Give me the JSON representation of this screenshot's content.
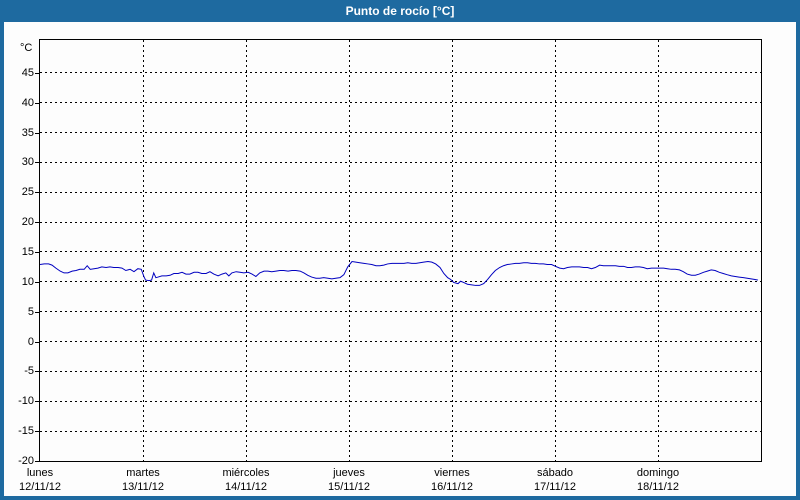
{
  "window": {
    "title": "Punto de rocío [°C]"
  },
  "colors": {
    "frame": "#1e6aa0",
    "title_text": "#ffffff",
    "plot_background": "#fdfdfd",
    "line": "#0000c0",
    "grid": "#000000"
  },
  "chart_data": {
    "type": "line",
    "title": "Punto de rocío [°C]",
    "y_unit_label": "°C",
    "ylabel": "°C",
    "xlabel": "",
    "ylim": [
      -20,
      50.5
    ],
    "yticks": [
      45,
      40,
      35,
      30,
      25,
      20,
      15,
      10,
      5,
      0,
      -5,
      -10,
      -15,
      -20
    ],
    "x_range_hours": [
      0,
      168
    ],
    "grid": "dashed",
    "legend_position": "none",
    "x_day_labels": [
      {
        "name": "lunes",
        "date": "12/11/12"
      },
      {
        "name": "martes",
        "date": "13/11/12"
      },
      {
        "name": "miércoles",
        "date": "14/11/12"
      },
      {
        "name": "jueves",
        "date": "15/11/12"
      },
      {
        "name": "viernes",
        "date": "16/11/12"
      },
      {
        "name": "sábado",
        "date": "17/11/12"
      },
      {
        "name": "domingo",
        "date": "18/11/12"
      }
    ],
    "series": [
      {
        "name": "Punto de rocío",
        "color": "#0000c0",
        "units": "°C",
        "points": [
          [
            0,
            12.9
          ],
          [
            1,
            13.0
          ],
          [
            2,
            13.0
          ],
          [
            2.8,
            12.8
          ],
          [
            3.7,
            12.3
          ],
          [
            4.7,
            11.8
          ],
          [
            5.6,
            11.5
          ],
          [
            6.5,
            11.5
          ],
          [
            7.5,
            11.8
          ],
          [
            8.4,
            11.9
          ],
          [
            9.3,
            12.1
          ],
          [
            10.3,
            12.1
          ],
          [
            11,
            12.7
          ],
          [
            11.7,
            12.1
          ],
          [
            12.6,
            12.2
          ],
          [
            13.5,
            12.3
          ],
          [
            14.4,
            12.5
          ],
          [
            15.4,
            12.4
          ],
          [
            16.3,
            12.5
          ],
          [
            17.2,
            12.4
          ],
          [
            18.2,
            12.4
          ],
          [
            19.1,
            12.3
          ],
          [
            20,
            11.9
          ],
          [
            21,
            12.1
          ],
          [
            21.9,
            11.7
          ],
          [
            22.8,
            12.2
          ],
          [
            23.6,
            12.1
          ],
          [
            24.2,
            10.9
          ],
          [
            24.6,
            10.3
          ],
          [
            25.4,
            10.2
          ],
          [
            26,
            10.3
          ],
          [
            26.5,
            11.5
          ],
          [
            27,
            10.7
          ],
          [
            27.5,
            10.8
          ],
          [
            28.4,
            11.0
          ],
          [
            29.4,
            11.0
          ],
          [
            30.3,
            11.1
          ],
          [
            31.2,
            11.4
          ],
          [
            32.2,
            11.4
          ],
          [
            33.1,
            11.6
          ],
          [
            34,
            11.3
          ],
          [
            34.9,
            11.3
          ],
          [
            35.9,
            11.6
          ],
          [
            36.8,
            11.6
          ],
          [
            37.7,
            11.4
          ],
          [
            38.7,
            11.4
          ],
          [
            39.6,
            11.7
          ],
          [
            40.5,
            11.3
          ],
          [
            41.5,
            11.0
          ],
          [
            42.4,
            11.3
          ],
          [
            43.3,
            11.5
          ],
          [
            44,
            11.0
          ],
          [
            44.7,
            11.5
          ],
          [
            45.7,
            11.7
          ],
          [
            46.6,
            11.6
          ],
          [
            47.5,
            11.5
          ],
          [
            48.5,
            11.6
          ],
          [
            49.4,
            11.3
          ],
          [
            50.3,
            10.9
          ],
          [
            51.2,
            11.5
          ],
          [
            52.2,
            11.8
          ],
          [
            53.1,
            11.8
          ],
          [
            54,
            11.7
          ],
          [
            55,
            11.8
          ],
          [
            55.9,
            11.9
          ],
          [
            56.8,
            11.9
          ],
          [
            57.8,
            11.8
          ],
          [
            58.7,
            11.9
          ],
          [
            59.6,
            11.9
          ],
          [
            60.6,
            11.8
          ],
          [
            61.5,
            11.5
          ],
          [
            62.4,
            11.1
          ],
          [
            63.3,
            10.8
          ],
          [
            64.3,
            10.6
          ],
          [
            65.2,
            10.6
          ],
          [
            66.1,
            10.7
          ],
          [
            67.1,
            10.6
          ],
          [
            68,
            10.5
          ],
          [
            68.9,
            10.6
          ],
          [
            69.9,
            10.7
          ],
          [
            70.8,
            11.2
          ],
          [
            71.7,
            12.5
          ],
          [
            72.7,
            13.4
          ],
          [
            73.6,
            13.3
          ],
          [
            74.5,
            13.2
          ],
          [
            75.5,
            13.1
          ],
          [
            76.4,
            13.0
          ],
          [
            77.3,
            12.9
          ],
          [
            78.3,
            12.7
          ],
          [
            79.2,
            12.7
          ],
          [
            80.1,
            12.8
          ],
          [
            81,
            13.0
          ],
          [
            82,
            13.1
          ],
          [
            82.9,
            13.1
          ],
          [
            83.9,
            13.1
          ],
          [
            84.8,
            13.1
          ],
          [
            85.7,
            13.2
          ],
          [
            86.6,
            13.1
          ],
          [
            87.6,
            13.1
          ],
          [
            88.5,
            13.2
          ],
          [
            89.4,
            13.3
          ],
          [
            90.4,
            13.4
          ],
          [
            91.3,
            13.3
          ],
          [
            92.2,
            13.0
          ],
          [
            93.2,
            12.4
          ],
          [
            94.1,
            11.4
          ],
          [
            95,
            10.7
          ],
          [
            95.7,
            10.4
          ],
          [
            96.4,
            9.9
          ],
          [
            97.4,
            9.7
          ],
          [
            98,
            10.1
          ],
          [
            98.7,
            9.9
          ],
          [
            99.6,
            9.6
          ],
          [
            100.6,
            9.5
          ],
          [
            101.5,
            9.4
          ],
          [
            102.4,
            9.4
          ],
          [
            103.4,
            9.7
          ],
          [
            104.3,
            10.4
          ],
          [
            105.2,
            11.2
          ],
          [
            106.1,
            11.9
          ],
          [
            107.1,
            12.4
          ],
          [
            108,
            12.7
          ],
          [
            108.9,
            12.9
          ],
          [
            109.9,
            13.0
          ],
          [
            110.8,
            13.1
          ],
          [
            111.7,
            13.1
          ],
          [
            112.7,
            13.2
          ],
          [
            113.6,
            13.2
          ],
          [
            114.5,
            13.1
          ],
          [
            115.4,
            13.1
          ],
          [
            116.4,
            13.0
          ],
          [
            117.3,
            13.0
          ],
          [
            118.2,
            12.9
          ],
          [
            119.2,
            12.9
          ],
          [
            120.1,
            12.6
          ],
          [
            121.1,
            12.3
          ],
          [
            122,
            12.2
          ],
          [
            122.9,
            12.4
          ],
          [
            123.9,
            12.5
          ],
          [
            124.8,
            12.5
          ],
          [
            125.7,
            12.5
          ],
          [
            126.7,
            12.4
          ],
          [
            127.6,
            12.4
          ],
          [
            128.5,
            12.2
          ],
          [
            129.4,
            12.4
          ],
          [
            130.4,
            12.8
          ],
          [
            131.3,
            12.7
          ],
          [
            132.2,
            12.7
          ],
          [
            133.2,
            12.7
          ],
          [
            134.1,
            12.7
          ],
          [
            135,
            12.6
          ],
          [
            136,
            12.6
          ],
          [
            136.9,
            12.4
          ],
          [
            137.8,
            12.4
          ],
          [
            138.7,
            12.5
          ],
          [
            139.7,
            12.5
          ],
          [
            140.6,
            12.4
          ],
          [
            141.5,
            12.2
          ],
          [
            142.5,
            12.3
          ],
          [
            143.4,
            12.3
          ],
          [
            144.3,
            12.3
          ],
          [
            145.3,
            12.3
          ],
          [
            146.2,
            12.2
          ],
          [
            147.1,
            12.1
          ],
          [
            148,
            12.1
          ],
          [
            149,
            12.0
          ],
          [
            149.9,
            11.7
          ],
          [
            150.8,
            11.3
          ],
          [
            151.8,
            11.1
          ],
          [
            152.7,
            11.1
          ],
          [
            153.6,
            11.3
          ],
          [
            154.6,
            11.6
          ],
          [
            155.5,
            11.8
          ],
          [
            156.4,
            12.0
          ],
          [
            157.3,
            11.9
          ],
          [
            158.3,
            11.6
          ],
          [
            159.2,
            11.4
          ],
          [
            160.1,
            11.2
          ],
          [
            161.1,
            11.0
          ],
          [
            162,
            10.9
          ],
          [
            162.9,
            10.8
          ],
          [
            163.9,
            10.7
          ],
          [
            164.8,
            10.6
          ],
          [
            165.7,
            10.5
          ],
          [
            166.6,
            10.4
          ],
          [
            167.3,
            10.3
          ]
        ]
      }
    ]
  }
}
